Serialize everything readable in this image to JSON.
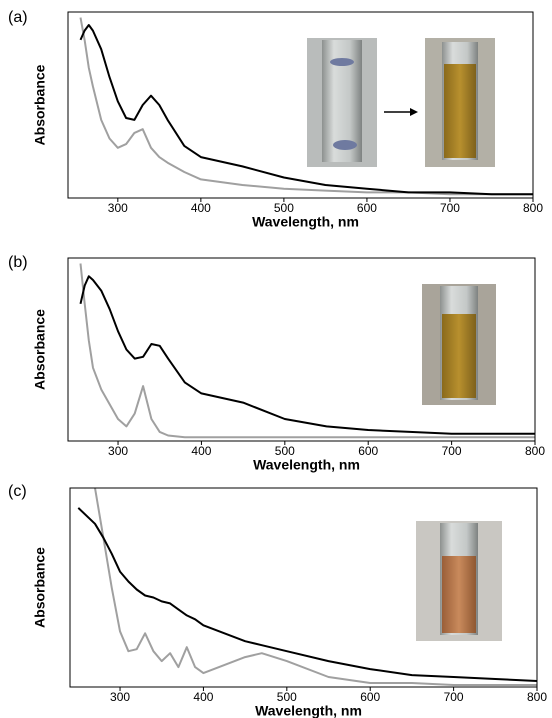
{
  "chart_data": [
    {
      "type": "line",
      "panel_label": "(a)",
      "xlabel": "Wavelength, nm",
      "ylabel": "Absorbance",
      "x": [
        255,
        260,
        265,
        270,
        280,
        290,
        300,
        310,
        320,
        330,
        340,
        350,
        360,
        380,
        400,
        450,
        500,
        550,
        600,
        650,
        700,
        750,
        800
      ],
      "series": [
        {
          "color": "#000000",
          "values": [
            0.85,
            0.9,
            0.93,
            0.9,
            0.8,
            0.65,
            0.52,
            0.43,
            0.42,
            0.5,
            0.55,
            0.5,
            0.42,
            0.28,
            0.22,
            0.17,
            0.11,
            0.07,
            0.05,
            0.03,
            0.03,
            0.02,
            0.02
          ]
        },
        {
          "color": "#a0a0a0",
          "values": [
            0.97,
            0.85,
            0.7,
            0.6,
            0.42,
            0.32,
            0.27,
            0.29,
            0.35,
            0.37,
            0.27,
            0.22,
            0.19,
            0.14,
            0.1,
            0.07,
            0.05,
            0.04,
            0.03,
            0.03,
            0.02,
            0.02,
            0.02
          ]
        }
      ],
      "xlim": [
        240,
        800
      ],
      "ylim": [
        0,
        1
      ],
      "xticks": [
        300,
        400,
        500,
        600,
        700,
        800
      ]
    },
    {
      "type": "line",
      "panel_label": "(b)",
      "xlabel": "Wavelength, nm",
      "ylabel": "Absorbance",
      "x": [
        255,
        260,
        265,
        270,
        280,
        290,
        300,
        310,
        320,
        330,
        340,
        350,
        360,
        380,
        400,
        450,
        500,
        550,
        600,
        650,
        700,
        750,
        800
      ],
      "series": [
        {
          "color": "#000000",
          "values": [
            0.75,
            0.85,
            0.9,
            0.88,
            0.82,
            0.72,
            0.6,
            0.5,
            0.45,
            0.46,
            0.53,
            0.52,
            0.45,
            0.32,
            0.26,
            0.21,
            0.12,
            0.08,
            0.06,
            0.05,
            0.04,
            0.04,
            0.04
          ]
        },
        {
          "color": "#a0a0a0",
          "values": [
            0.97,
            0.75,
            0.55,
            0.4,
            0.28,
            0.2,
            0.12,
            0.08,
            0.15,
            0.3,
            0.12,
            0.05,
            0.03,
            0.02,
            0.02,
            0.02,
            0.02,
            0.02,
            0.02,
            0.02,
            0.02,
            0.02,
            0.02
          ]
        }
      ],
      "xlim": [
        240,
        800
      ],
      "ylim": [
        0,
        1
      ],
      "xticks": [
        300,
        400,
        500,
        600,
        700,
        800
      ]
    },
    {
      "type": "line",
      "panel_label": "(c)",
      "xlabel": "Wavelength, nm",
      "ylabel": "Absorbance",
      "x": [
        250,
        270,
        280,
        290,
        300,
        310,
        320,
        330,
        340,
        350,
        360,
        370,
        380,
        390,
        400,
        450,
        470,
        500,
        550,
        600,
        650,
        700,
        750,
        800
      ],
      "series": [
        {
          "color": "#000000",
          "values": [
            0.9,
            0.82,
            0.75,
            0.67,
            0.58,
            0.53,
            0.49,
            0.46,
            0.45,
            0.43,
            0.42,
            0.39,
            0.36,
            0.34,
            0.31,
            0.23,
            0.21,
            0.18,
            0.13,
            0.09,
            0.06,
            0.05,
            0.04,
            0.03
          ]
        },
        {
          "color": "#a0a0a0",
          "values": [
            null,
            1.0,
            0.75,
            0.5,
            0.28,
            0.18,
            0.19,
            0.27,
            0.18,
            0.13,
            0.17,
            0.1,
            0.2,
            0.1,
            0.07,
            0.15,
            0.17,
            0.13,
            0.05,
            0.02,
            0.02,
            0.01,
            0.01,
            0.01
          ]
        }
      ],
      "xlim": [
        240,
        800
      ],
      "ylim": [
        0,
        1
      ],
      "xticks": [
        300,
        400,
        500,
        600,
        700,
        800
      ]
    }
  ]
}
